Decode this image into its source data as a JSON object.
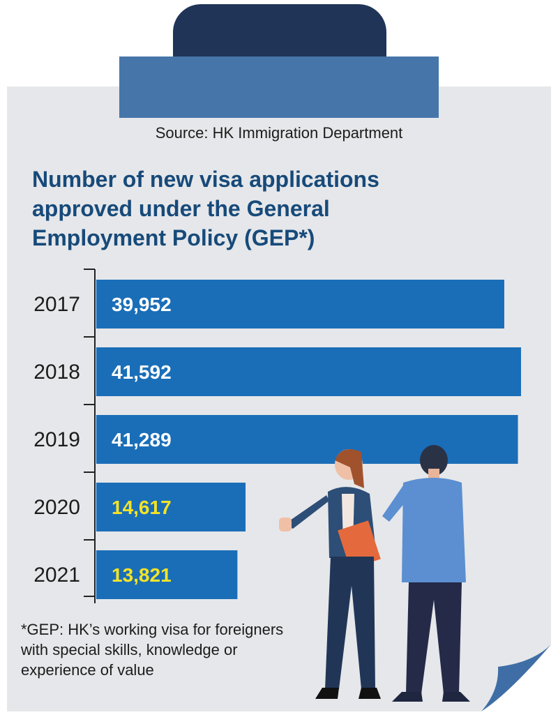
{
  "source": "Source: HK Immigration Department",
  "title": "Number of new visa applications approved under the General Employment Policy (GEP*)",
  "footnote": "*GEP: HK’s working visa for foreigners with special skills, knowledge or experience of value",
  "colors": {
    "bar": "#1a6eb8",
    "label_default": "#ffffff",
    "label_highlight": "#f5e326",
    "card": "#e6e7ea",
    "clip_dark": "#1f3457",
    "clip_band": "#4676a9",
    "title": "#174a7a"
  },
  "chart_data": {
    "type": "bar",
    "orientation": "horizontal",
    "categories": [
      "2017",
      "2018",
      "2019",
      "2020",
      "2021"
    ],
    "values": [
      39952,
      41592,
      41289,
      14617,
      13821
    ],
    "value_labels": [
      "39,952",
      "41,592",
      "41,289",
      "14,617",
      "13,821"
    ],
    "highlighted": [
      false,
      false,
      false,
      true,
      true
    ],
    "xlim": [
      0,
      41592
    ],
    "grid": false,
    "legend": "none"
  },
  "icons": [
    "clipboard-clip-icon",
    "people-illustration-icon",
    "page-fold-icon"
  ]
}
